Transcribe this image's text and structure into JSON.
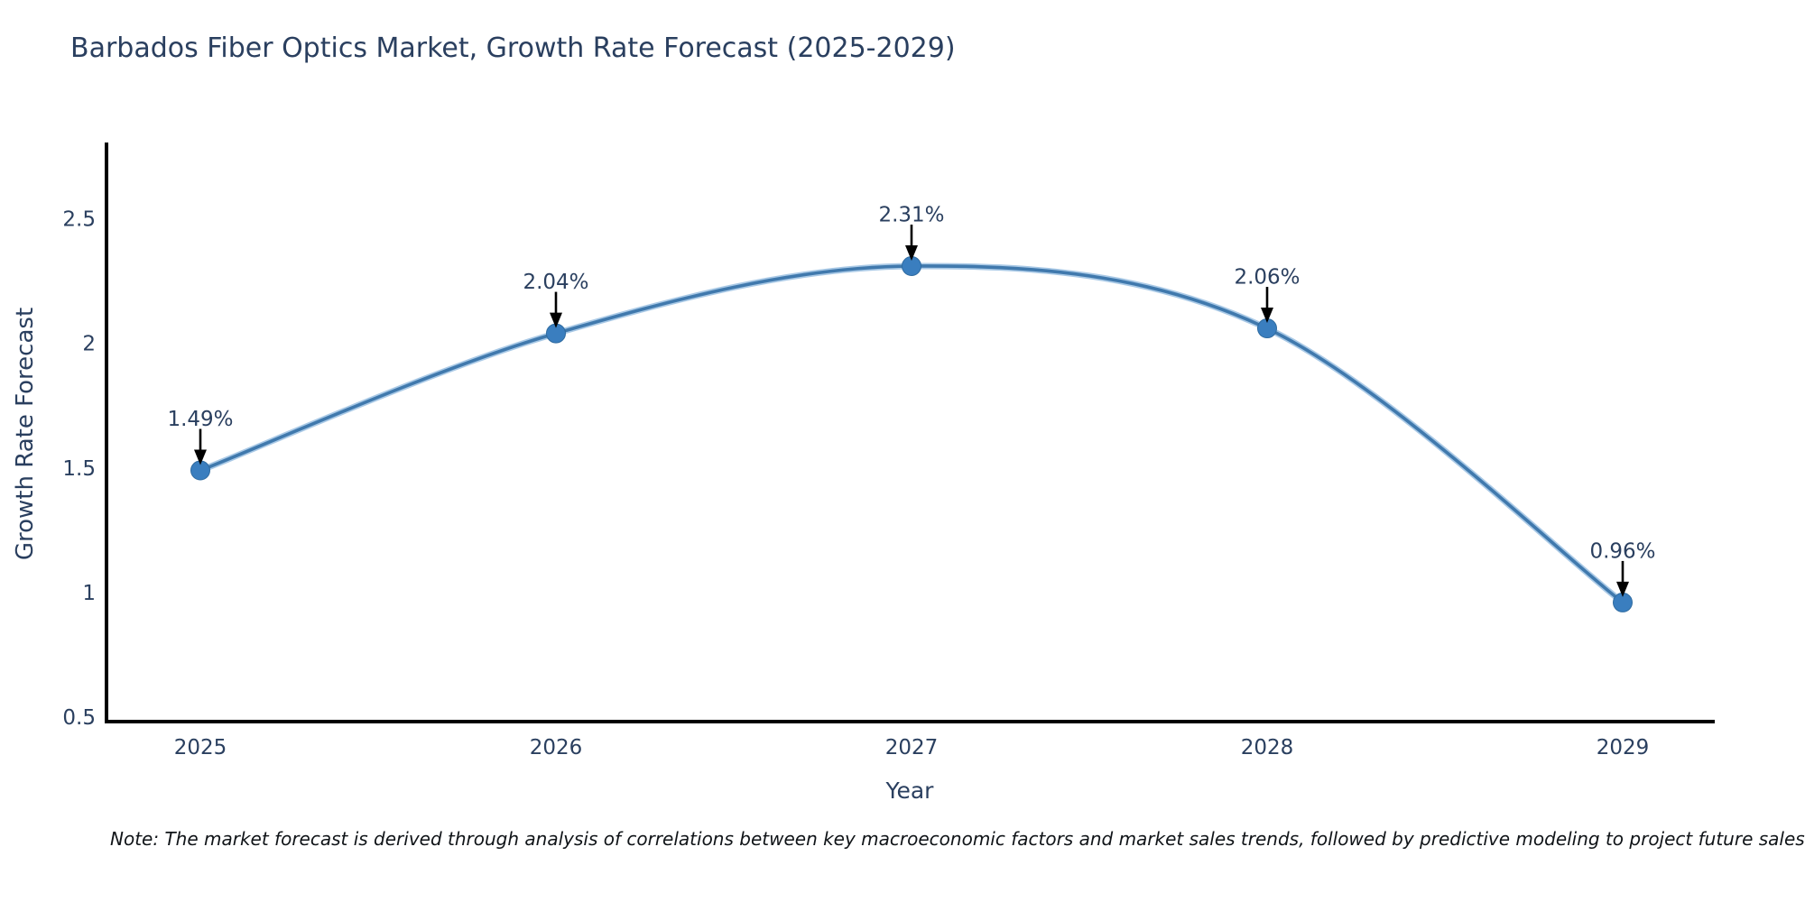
{
  "page": {
    "note": "Note: The market forecast is derived through analysis of correlations between key macroeconomic factors and market sales trends, followed by predictive modeling to project future sales"
  },
  "chart_data": {
    "type": "line",
    "title": "Barbados Fiber Optics Market, Growth Rate Forecast (2025-2029)",
    "xlabel": "Year",
    "ylabel": "Growth Rate Forecast",
    "x": [
      2025,
      2026,
      2027,
      2028,
      2029
    ],
    "series": [
      {
        "name": "Growth Rate Forecast",
        "values": [
          1.49,
          2.04,
          2.31,
          2.06,
          0.96
        ],
        "point_labels": [
          "1.49%",
          "2.04%",
          "2.31%",
          "2.06%",
          "0.96%"
        ]
      }
    ],
    "xtick_labels": [
      "2025",
      "2026",
      "2027",
      "2028",
      "2029"
    ],
    "yticks": [
      0.5,
      1,
      1.5,
      2,
      2.5
    ],
    "ytick_labels": [
      "0.5",
      "1",
      "1.5",
      "2",
      "2.5"
    ],
    "ylim": [
      0.48,
      2.82
    ],
    "grid": false,
    "legend": "none",
    "annotations": "arrows-from-labels-to-points",
    "colors": {
      "line": "#4079ad",
      "line_halo": "#a9c9e6",
      "marker": "#3a7ebf",
      "marker_edge": "#2f6ba0",
      "axis_spine": "#000000",
      "text": "#2a3f5f",
      "annotation_arrow": "#000000"
    }
  }
}
